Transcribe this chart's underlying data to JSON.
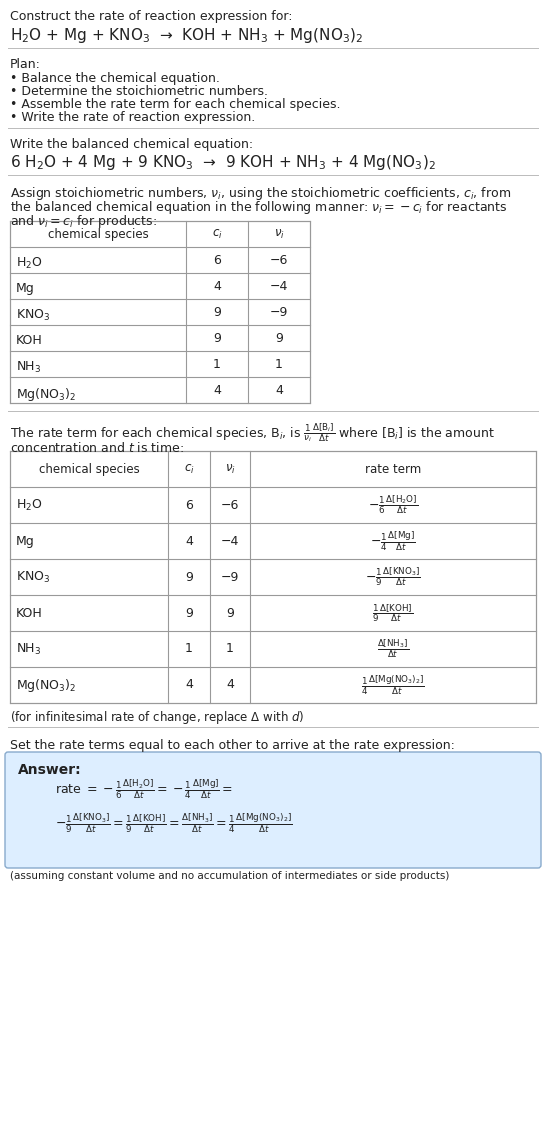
{
  "title_line1": "Construct the rate of reaction expression for:",
  "reaction_unbalanced": "H$_2$O + Mg + KNO$_3$  →  KOH + NH$_3$ + Mg(NO$_3$)$_2$",
  "plan_header": "Plan:",
  "plan_items": [
    "• Balance the chemical equation.",
    "• Determine the stoichiometric numbers.",
    "• Assemble the rate term for each chemical species.",
    "• Write the rate of reaction expression."
  ],
  "balanced_header": "Write the balanced chemical equation:",
  "reaction_balanced": "6 H$_2$O + 4 Mg + 9 KNO$_3$  →  9 KOH + NH$_3$ + 4 Mg(NO$_3$)$_2$",
  "assign_text1": "Assign stoichiometric numbers, $\\nu_i$, using the stoichiometric coefficients, $c_i$, from",
  "assign_text2": "the balanced chemical equation in the following manner: $\\nu_i = -c_i$ for reactants",
  "assign_text3": "and $\\nu_i = c_i$ for products:",
  "table1_headers": [
    "chemical species",
    "$c_i$",
    "$\\nu_i$"
  ],
  "table1_rows": [
    [
      "H$_2$O",
      "6",
      "−6"
    ],
    [
      "Mg",
      "4",
      "−4"
    ],
    [
      "KNO$_3$",
      "9",
      "−9"
    ],
    [
      "KOH",
      "9",
      "9"
    ],
    [
      "NH$_3$",
      "1",
      "1"
    ],
    [
      "Mg(NO$_3$)$_2$",
      "4",
      "4"
    ]
  ],
  "rate_text1": "The rate term for each chemical species, B$_i$, is $\\frac{1}{\\nu_i}\\frac{\\Delta[\\mathrm{B}_i]}{\\Delta t}$ where [B$_i$] is the amount",
  "rate_text2": "concentration and $t$ is time:",
  "table2_headers": [
    "chemical species",
    "$c_i$",
    "$\\nu_i$",
    "rate term"
  ],
  "table2_rows": [
    [
      "H$_2$O",
      "6",
      "−6",
      "$-\\frac{1}{6}\\frac{\\Delta[\\mathrm{H_2O}]}{\\Delta t}$"
    ],
    [
      "Mg",
      "4",
      "−4",
      "$-\\frac{1}{4}\\frac{\\Delta[\\mathrm{Mg}]}{\\Delta t}$"
    ],
    [
      "KNO$_3$",
      "9",
      "−9",
      "$-\\frac{1}{9}\\frac{\\Delta[\\mathrm{KNO_3}]}{\\Delta t}$"
    ],
    [
      "KOH",
      "9",
      "9",
      "$\\frac{1}{9}\\frac{\\Delta[\\mathrm{KOH}]}{\\Delta t}$"
    ],
    [
      "NH$_3$",
      "1",
      "1",
      "$\\frac{\\Delta[\\mathrm{NH_3}]}{\\Delta t}$"
    ],
    [
      "Mg(NO$_3$)$_2$",
      "4",
      "4",
      "$\\frac{1}{4}\\frac{\\Delta[\\mathrm{Mg(NO_3)_2}]}{\\Delta t}$"
    ]
  ],
  "infinitesimal_note": "(for infinitesimal rate of change, replace Δ with $d$)",
  "set_text": "Set the rate terms equal to each other to arrive at the rate expression:",
  "answer_label": "Answer:",
  "answer_box_color": "#ddeeff",
  "answer_line1": "rate $= -\\frac{1}{6}\\frac{\\Delta[\\mathrm{H_2O}]}{\\Delta t} = -\\frac{1}{4}\\frac{\\Delta[\\mathrm{Mg}]}{\\Delta t} =$",
  "answer_line2": "$-\\frac{1}{9}\\frac{\\Delta[\\mathrm{KNO_3}]}{\\Delta t} = \\frac{1}{9}\\frac{\\Delta[\\mathrm{KOH}]}{\\Delta t} = \\frac{\\Delta[\\mathrm{NH_3}]}{\\Delta t} = \\frac{1}{4}\\frac{\\Delta[\\mathrm{Mg(NO_3)_2}]}{\\Delta t}$",
  "answer_note": "(assuming constant volume and no accumulation of intermediates or side products)",
  "bg_color": "#ffffff",
  "text_color": "#222222",
  "table_border_color": "#999999",
  "sep_line_color": "#bbbbbb",
  "answer_border_color": "#88aacc"
}
